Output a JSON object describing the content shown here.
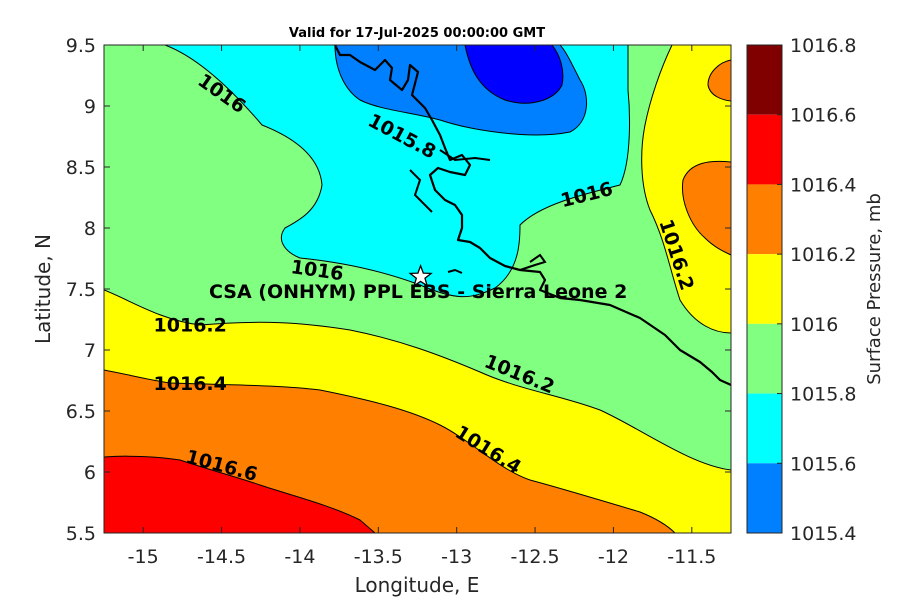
{
  "title": "Valid for 17-Jul-2025 00:00:00 GMT",
  "axes": {
    "xlabel": "Longitude, E",
    "ylabel": "Latitude, N",
    "xticks": [
      "-15",
      "-14.5",
      "-14",
      "-13.5",
      "-13",
      "-12.5",
      "-12",
      "-11.5"
    ],
    "yticks": [
      "9.5",
      "9",
      "8.5",
      "8",
      "7.5",
      "7",
      "6.5",
      "6",
      "5.5"
    ],
    "xlim": [
      -15.25,
      -11.25
    ],
    "ylim": [
      5.5,
      9.5
    ]
  },
  "colorbar": {
    "label": "Surface Pressure, mb",
    "levels": [
      "1016.8",
      "1016.6",
      "1016.4",
      "1016.2",
      "1016",
      "1015.8",
      "1015.6",
      "1015.4"
    ],
    "colors": [
      "#800000",
      "#ff0000",
      "#ff8000",
      "#ffff00",
      "#80ff80",
      "#00ffff",
      "#0080ff",
      "#0000ff"
    ]
  },
  "contour_labels": [
    {
      "text": "1016",
      "lon": -14.5,
      "lat": 9.1,
      "angle": 35
    },
    {
      "text": "1015.8",
      "lon": -13.35,
      "lat": 8.75,
      "angle": 28
    },
    {
      "text": "1016",
      "lon": -12.17,
      "lat": 8.27,
      "angle": -14
    },
    {
      "text": "1016.2",
      "lon": -11.6,
      "lat": 7.78,
      "angle": 72
    },
    {
      "text": "1016",
      "lon": -13.89,
      "lat": 7.65,
      "angle": 8
    },
    {
      "text": "1016.2",
      "lon": -14.7,
      "lat": 7.2,
      "angle": 0
    },
    {
      "text": "1016.2",
      "lon": -12.6,
      "lat": 6.8,
      "angle": 22
    },
    {
      "text": "1016.4",
      "lon": -14.7,
      "lat": 6.72,
      "angle": 0
    },
    {
      "text": "1016.4",
      "lon": -12.8,
      "lat": 6.18,
      "angle": 32
    },
    {
      "text": "1016.6",
      "lon": -14.5,
      "lat": 6.05,
      "angle": 15
    }
  ],
  "site": {
    "label": "CSA (ONHYM) PPL EBS - Sierra Leone 2",
    "lon": -13.23,
    "lat": 7.6
  }
}
